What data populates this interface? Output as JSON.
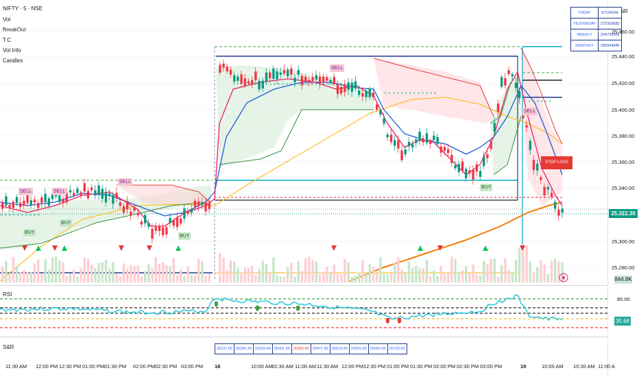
{
  "symbol_title": "NIFTY · 5 · NSE",
  "indicators": [
    "Vol",
    "BreakOut",
    "T.C",
    "Vol Info",
    "Candles"
  ],
  "currency": "INR",
  "price_axis": [
    "25,460.00",
    "25,440.00",
    "25,420.00",
    "25,400.00",
    "25,380.00",
    "25,360.00",
    "25,340.00",
    "25,300.00",
    "25,280.00"
  ],
  "current_price": "25,322.30",
  "volume_value": "844.8K",
  "rsi": {
    "title": "RSI",
    "level_80": "80.00",
    "current": "35.68"
  },
  "time_axis": [
    {
      "label": "11:30 AM",
      "bold": false
    },
    {
      "label": "12:00 PM",
      "bold": false
    },
    {
      "label": "12:30 PM",
      "bold": false
    },
    {
      "label": "01:00 PM",
      "bold": false
    },
    {
      "label": "01:30 PM",
      "bold": false
    },
    {
      "label": "02:00 PM",
      "bold": false
    },
    {
      "label": "02:30 PM",
      "bold": false
    },
    {
      "label": "03:00 PM",
      "bold": false
    },
    {
      "label": "18",
      "bold": true
    },
    {
      "label": "10:00 AM",
      "bold": false
    },
    {
      "label": "10:30 AM",
      "bold": false
    },
    {
      "label": "11:00 AM",
      "bold": false
    },
    {
      "label": "11:30 AM",
      "bold": false
    },
    {
      "label": "12:00 PM",
      "bold": false
    },
    {
      "label": "12:30 PM",
      "bold": false
    },
    {
      "label": "01:00 PM",
      "bold": false
    },
    {
      "label": "01:30 PM",
      "bold": false
    },
    {
      "label": "02:00 PM",
      "bold": false
    },
    {
      "label": "02:30 PM",
      "bold": false
    },
    {
      "label": "03:00 PM",
      "bold": false
    },
    {
      "label": "19",
      "bold": true
    },
    {
      "label": "10:00 AM",
      "bold": false
    },
    {
      "label": "10:30 AM",
      "bold": false
    },
    {
      "label": "11:00 A",
      "bold": false
    }
  ],
  "volume_stats": [
    {
      "label": "TODAY",
      "value": "57134166"
    },
    {
      "label": "YESTERDAY",
      "value": "272393683"
    },
    {
      "label": "WEEKLY",
      "value": "204792929"
    },
    {
      "label": "MONTHLY",
      "value": "265943846"
    }
  ],
  "sr_label": "S&R",
  "sr_levels": [
    "25137.00",
    "25185.30",
    "25233.40",
    "25281.55",
    "25352.60",
    "25471.80",
    "25519.95",
    "25591.00",
    "25662.00",
    "25733.00"
  ],
  "signals": {
    "sell": "SELL",
    "buy": "BUY",
    "stop": "STOP LOSS"
  },
  "colors": {
    "up": "#089981",
    "down": "#f23645",
    "rsi_line": "#26c6da",
    "ema_fast": "#e91e63",
    "ema_slow": "#2962ff",
    "ma_long": "#fbc02d",
    "ma_orange": "#f57c00"
  }
}
